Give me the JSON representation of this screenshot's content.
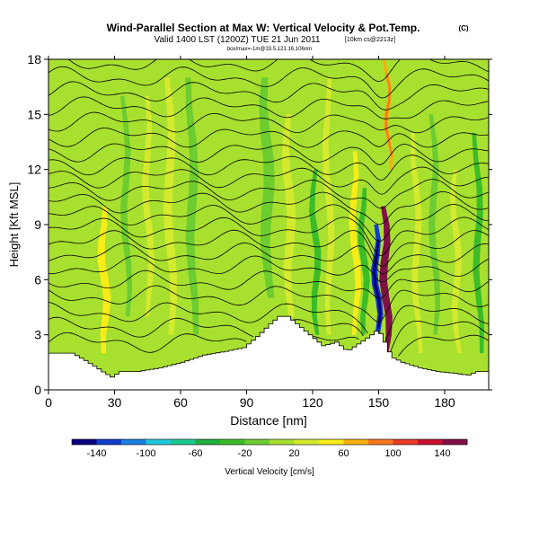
{
  "chart_data": {
    "type": "heatmap",
    "title": "Wind-Parallel Section at Max W: Vertical Velocity & Pot.Temp.",
    "title_mark": "(C)",
    "subtitle": "Valid 1400 LST (1200Z) TUE 21 Jun 2011",
    "subtitle_right": "[10km cs@2213z]",
    "subtitle2": "box/max=-1m@33.5,121.16,106nm",
    "xlabel": "Distance [nm]",
    "ylabel": "Height [Kft MSL]",
    "x_ticks": [
      0,
      30,
      60,
      90,
      120,
      150,
      180
    ],
    "y_ticks": [
      0,
      3,
      6,
      9,
      12,
      15,
      18
    ],
    "xlim": [
      0,
      200
    ],
    "ylim": [
      0,
      18
    ],
    "colorbar": {
      "label": "Vertical Velocity [cm/s]",
      "tick_labels": [
        "-140",
        "-100",
        "-60",
        "-20",
        "20",
        "60",
        "100",
        "140"
      ],
      "range": [
        -160,
        160
      ],
      "colors": [
        "#0a0080",
        "#0f3ec8",
        "#1a7fe0",
        "#21c8d8",
        "#1bc890",
        "#20b040",
        "#3cbc28",
        "#6ccc30",
        "#a8e030",
        "#d4ea2e",
        "#f8ec18",
        "#f8b010",
        "#f87820",
        "#e83a28",
        "#c81030",
        "#801048"
      ]
    },
    "terrain_kft": [
      [
        0,
        2.0
      ],
      [
        10,
        2.0
      ],
      [
        16,
        1.6
      ],
      [
        20,
        1.3
      ],
      [
        25,
        0.9
      ],
      [
        28,
        0.7
      ],
      [
        32,
        1.0
      ],
      [
        40,
        1.0
      ],
      [
        50,
        1.2
      ],
      [
        60,
        1.5
      ],
      [
        70,
        1.9
      ],
      [
        80,
        2.1
      ],
      [
        88,
        2.3
      ],
      [
        95,
        3.0
      ],
      [
        100,
        3.6
      ],
      [
        104,
        4.0
      ],
      [
        108,
        4.0
      ],
      [
        112,
        3.6
      ],
      [
        118,
        3.0
      ],
      [
        124,
        2.4
      ],
      [
        130,
        2.6
      ],
      [
        135,
        2.1
      ],
      [
        140,
        2.5
      ],
      [
        145,
        2.9
      ],
      [
        149,
        3.3
      ],
      [
        152,
        2.6
      ],
      [
        155,
        1.8
      ],
      [
        160,
        1.5
      ],
      [
        168,
        1.2
      ],
      [
        176,
        1.0
      ],
      [
        184,
        0.9
      ],
      [
        190,
        0.8
      ],
      [
        194,
        1.0
      ],
      [
        200,
        1.0
      ]
    ],
    "updraft_bands": [
      {
        "x": 12,
        "w": 3,
        "y0": 3,
        "y1": 17,
        "w_cms": 15
      },
      {
        "x": 26,
        "w": 3.5,
        "y0": 2,
        "y1": 10,
        "w_cms": 40
      },
      {
        "x": 46,
        "w": 3,
        "y0": 4,
        "y1": 16,
        "w_cms": 20
      },
      {
        "x": 56,
        "w": 4,
        "y0": 3,
        "y1": 17,
        "w_cms": 20
      },
      {
        "x": 74,
        "w": 3,
        "y0": 4,
        "y1": 14,
        "w_cms": 15
      },
      {
        "x": 92,
        "w": 3,
        "y0": 5,
        "y1": 16,
        "w_cms": 15
      },
      {
        "x": 110,
        "w": 4,
        "y0": 4,
        "y1": 15,
        "w_cms": 20
      },
      {
        "x": 128,
        "w": 3,
        "y0": 3,
        "y1": 17,
        "w_cms": 30
      },
      {
        "x": 140,
        "w": 3,
        "y0": 3,
        "y1": 13,
        "w_cms": 40
      },
      {
        "x": 154,
        "w": 3.5,
        "y0": 2,
        "y1": 10,
        "w_cms": 140
      },
      {
        "x": 155,
        "w": 2,
        "y0": 12,
        "y1": 18,
        "w_cms": 60
      },
      {
        "x": 168,
        "w": 3,
        "y0": 2,
        "y1": 14,
        "w_cms": 25
      },
      {
        "x": 186,
        "w": 3,
        "y0": 2,
        "y1": 12,
        "w_cms": 20
      }
    ],
    "downdraft_bands": [
      {
        "x": 36,
        "w": 3,
        "y0": 4,
        "y1": 16,
        "w_cms": -20
      },
      {
        "x": 66,
        "w": 4,
        "y0": 3,
        "y1": 17,
        "w_cms": -20
      },
      {
        "x": 100,
        "w": 5,
        "y0": 5,
        "y1": 17,
        "w_cms": -20
      },
      {
        "x": 122,
        "w": 3,
        "y0": 3,
        "y1": 12,
        "w_cms": -25
      },
      {
        "x": 144,
        "w": 3,
        "y0": 3,
        "y1": 11,
        "w_cms": -40
      },
      {
        "x": 150,
        "w": 3,
        "y0": 2.5,
        "y1": 9,
        "w_cms": -140
      },
      {
        "x": 176,
        "w": 3,
        "y0": 3,
        "y1": 15,
        "w_cms": -20
      },
      {
        "x": 196,
        "w": 3,
        "y0": 2,
        "y1": 14,
        "w_cms": -25
      }
    ],
    "isentrope_base_kft": [
      2.6,
      3.4,
      4.2,
      5.1,
      5.9,
      6.7,
      7.4,
      8.1,
      8.8,
      9.5,
      10.2,
      10.9,
      11.6,
      12.3,
      13.0,
      13.8,
      14.6,
      15.4,
      16.2,
      17.0,
      17.8
    ]
  }
}
